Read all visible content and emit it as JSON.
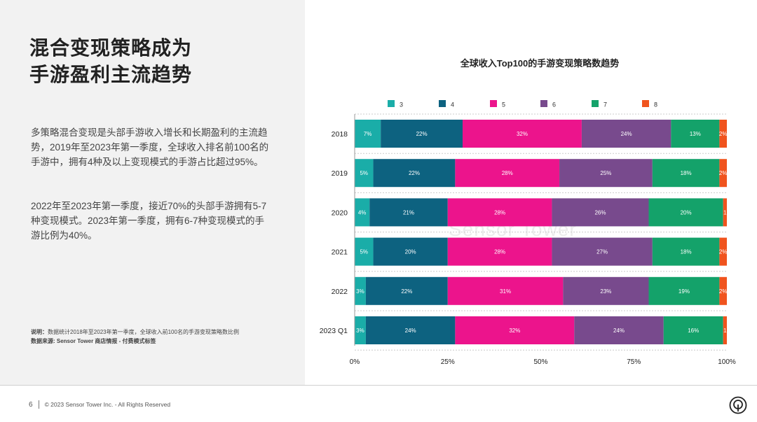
{
  "page": {
    "title_line1": "混合变现策略成为",
    "title_line2": "手游盈利主流趋势",
    "paragraph1": "多策略混合变现是头部手游收入增长和长期盈利的主流趋势，2019年至2023年第一季度，全球收入排名前100名的手游中，拥有4种及以上变现模式的手游占比超过95%。",
    "paragraph2": "2022年至2023年第一季度，接近70%的头部手游拥有5-7种变现模式。2023年第一季度，拥有6-7种变现模式的手游比例为40%。",
    "note_label": "说明：",
    "note_text": "数据统计2018年至2023年第一季度，全球收入前100名的手游变现策略数比例",
    "source_text": "数据来源: Sensor Tower 商店情报 - 付费模式标签",
    "page_number": "6",
    "copyright": "© 2023 Sensor Tower Inc. - All Rights Reserved",
    "logo_icon": "sensor-tower-logo-icon",
    "watermark": "Sensor Tower"
  },
  "chart_data": {
    "type": "bar",
    "orientation": "horizontal",
    "stacked": "percent",
    "title": "全球收入Top100的手游变现策略数趋势",
    "categories": [
      "2018",
      "2019",
      "2020",
      "2021",
      "2022",
      "2023 Q1"
    ],
    "series": [
      {
        "name": "3",
        "color": "#1aada8",
        "values": [
          7,
          5,
          4,
          5,
          3,
          3
        ],
        "labels": [
          "7%",
          "5%",
          "4%",
          "5%",
          "3%",
          "3%"
        ]
      },
      {
        "name": "4",
        "color": "#0d6280",
        "values": [
          22,
          22,
          21,
          20,
          22,
          24
        ],
        "labels": [
          "22%",
          "22%",
          "21%",
          "20%",
          "22%",
          "24%"
        ]
      },
      {
        "name": "5",
        "color": "#ec148c",
        "values": [
          32,
          28,
          28,
          28,
          31,
          32
        ],
        "labels": [
          "32%",
          "28%",
          "28%",
          "28%",
          "31%",
          "32%"
        ]
      },
      {
        "name": "6",
        "color": "#784a8d",
        "values": [
          24,
          25,
          26,
          27,
          23,
          24
        ],
        "labels": [
          "24%",
          "25%",
          "26%",
          "27%",
          "23%",
          "24%"
        ]
      },
      {
        "name": "7",
        "color": "#14a26a",
        "values": [
          13,
          18,
          20,
          18,
          19,
          16
        ],
        "labels": [
          "13%",
          "18%",
          "20%",
          "18%",
          "19%",
          "16%"
        ]
      },
      {
        "name": "8",
        "color": "#f0541e",
        "values": [
          2,
          2,
          1,
          2,
          2,
          1
        ],
        "labels": [
          "2%",
          "2%",
          "1",
          "2%",
          "2%",
          "1"
        ]
      }
    ],
    "xlim": [
      0,
      100
    ],
    "xticks": [
      "0%",
      "25%",
      "50%",
      "75%",
      "100%"
    ],
    "legend_position": "top",
    "grid": false
  }
}
